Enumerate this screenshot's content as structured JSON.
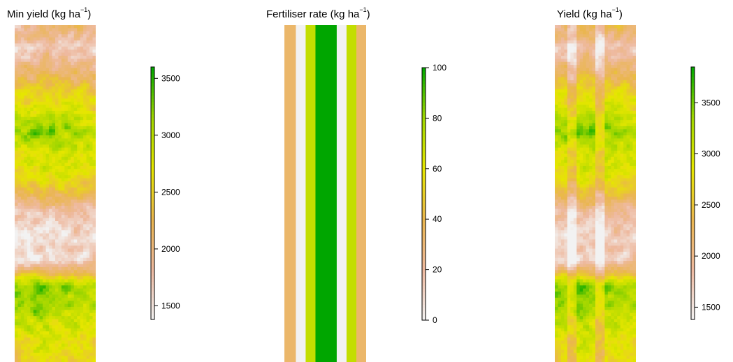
{
  "colors": {
    "scale": [
      "#f2f2f2",
      "#eeb99f",
      "#eab64e",
      "#e6e600",
      "#a0d600",
      "#00a600"
    ],
    "text": "#000000",
    "tick": "#000000"
  },
  "chart_data": [
    {
      "type": "heatmap",
      "title": "Min yield (kg ha",
      "title_sup": "−1",
      "title_close": ")",
      "zlim": [
        1380,
        3600
      ],
      "legend_ticks": [
        1500,
        2000,
        2500,
        3000,
        3500
      ],
      "grid": {
        "cols": 26,
        "rows": 110
      },
      "pattern": [
        {
          "y": 0.0,
          "x": 0.5,
          "v": 2050
        },
        {
          "y": 0.07,
          "x": 0.4,
          "v": 1750
        },
        {
          "y": 0.16,
          "x": 0.5,
          "v": 2300
        },
        {
          "y": 0.32,
          "x": 0.3,
          "v": 3250
        },
        {
          "y": 0.38,
          "x": 0.7,
          "v": 2900
        },
        {
          "y": 0.46,
          "x": 0.5,
          "v": 2700
        },
        {
          "y": 0.56,
          "x": 0.7,
          "v": 1750
        },
        {
          "y": 0.7,
          "x": 0.8,
          "v": 1600
        },
        {
          "y": 0.78,
          "x": 0.2,
          "v": 3250
        },
        {
          "y": 0.88,
          "x": 0.4,
          "v": 3000
        },
        {
          "y": 1.0,
          "x": 0.5,
          "v": 2600
        }
      ]
    },
    {
      "type": "heatmap",
      "title": "Fertiliser rate (kg ha",
      "title_sup": "−1",
      "title_close": ")",
      "zlim": [
        0,
        100
      ],
      "legend_ticks": [
        0,
        20,
        40,
        60,
        80,
        100
      ],
      "columns": [
        {
          "fraction": 0.14,
          "value": 33
        },
        {
          "fraction": 0.12,
          "value": 0
        },
        {
          "fraction": 0.12,
          "value": 70
        },
        {
          "fraction": 0.26,
          "value": 100
        },
        {
          "fraction": 0.12,
          "value": 0
        },
        {
          "fraction": 0.12,
          "value": 70
        },
        {
          "fraction": 0.12,
          "value": 33
        }
      ]
    },
    {
      "type": "heatmap",
      "title": "Yield (kg ha",
      "title_sup": "−1",
      "title_close": ")",
      "zlim": [
        1380,
        3850
      ],
      "legend_ticks": [
        1500,
        2000,
        2500,
        3000,
        3500
      ],
      "grid": {
        "cols": 26,
        "rows": 110
      },
      "pattern": [
        {
          "y": 0.0,
          "x": 0.5,
          "v": 2300
        },
        {
          "y": 0.07,
          "x": 0.4,
          "v": 1850
        },
        {
          "y": 0.16,
          "x": 0.5,
          "v": 2500
        },
        {
          "y": 0.32,
          "x": 0.3,
          "v": 3500
        },
        {
          "y": 0.38,
          "x": 0.7,
          "v": 3100
        },
        {
          "y": 0.46,
          "x": 0.5,
          "v": 2900
        },
        {
          "y": 0.56,
          "x": 0.7,
          "v": 1900
        },
        {
          "y": 0.7,
          "x": 0.8,
          "v": 1700
        },
        {
          "y": 0.78,
          "x": 0.2,
          "v": 3500
        },
        {
          "y": 0.88,
          "x": 0.4,
          "v": 3200
        },
        {
          "y": 1.0,
          "x": 0.5,
          "v": 2800
        }
      ],
      "stripes": [
        {
          "from": 0.14,
          "to": 0.26,
          "offset": -400
        },
        {
          "from": 0.52,
          "to": 0.64,
          "offset": -450
        }
      ]
    }
  ]
}
